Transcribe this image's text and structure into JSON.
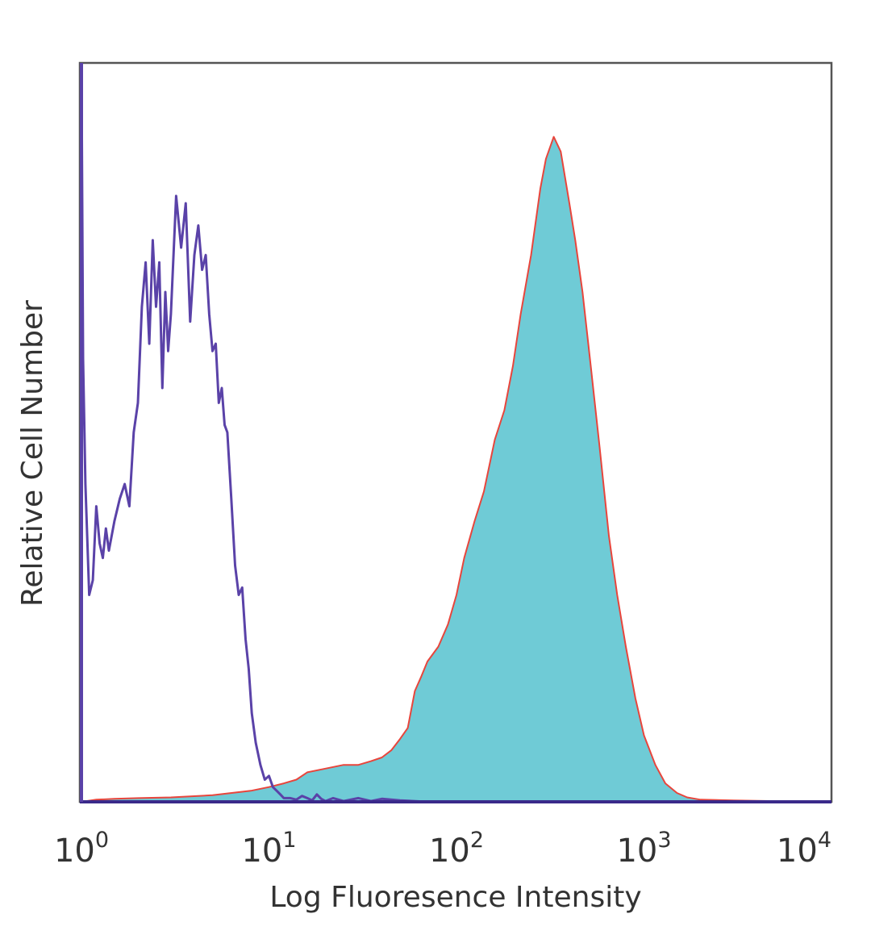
{
  "chart_data": {
    "type": "area",
    "title": "",
    "xlabel": "Log Fluoresence Intensity",
    "ylabel": "Relative Cell Number",
    "x_scale": "log10",
    "xlim": [
      1,
      10000
    ],
    "ylim": [
      0,
      100
    ],
    "grid": false,
    "legend": "none",
    "x_ticks": [
      {
        "base": "10",
        "exp": "0"
      },
      {
        "base": "10",
        "exp": "1"
      },
      {
        "base": "10",
        "exp": "2"
      },
      {
        "base": "10",
        "exp": "3"
      },
      {
        "base": "10",
        "exp": "4"
      }
    ],
    "series": [
      {
        "style": "filled",
        "color": "#6fcbd6",
        "outline_color": "#e8453c",
        "x": [
          1.0,
          1.2,
          1.5,
          2.0,
          3.0,
          5.0,
          8.0,
          10.0,
          12.0,
          14.0,
          16.0,
          20.0,
          25.0,
          30.0,
          35.0,
          40.0,
          45.0,
          50.0,
          55.0,
          60.0,
          65.0,
          70.0,
          80.0,
          90.0,
          100.0,
          110.0,
          125.0,
          140.0,
          160.0,
          180.0,
          200.0,
          220.0,
          250.0,
          280.0,
          300.0,
          330.0,
          360.0,
          400.0,
          430.0,
          470.0,
          520.0,
          580.0,
          650.0,
          720.0,
          800.0,
          900.0,
          1000.0,
          1150.0,
          1300.0,
          1500.0,
          1700.0,
          2000.0,
          3000.0,
          5000.0,
          10000.0
        ],
        "values": [
          0.0,
          0.3,
          0.4,
          0.5,
          0.6,
          0.9,
          1.5,
          2.0,
          2.5,
          3.0,
          4.0,
          4.5,
          5.0,
          5.0,
          5.5,
          6.0,
          7.0,
          8.5,
          10.0,
          15.0,
          17.0,
          19.0,
          21.0,
          24.0,
          28.0,
          33.0,
          38.0,
          42.0,
          49.0,
          53.0,
          59.0,
          66.0,
          74.0,
          83.0,
          87.0,
          90.0,
          88.0,
          81.0,
          76.0,
          69.0,
          59.0,
          48.0,
          36.0,
          28.0,
          21.0,
          14.0,
          9.0,
          5.0,
          2.5,
          1.2,
          0.6,
          0.3,
          0.2,
          0.1,
          0.0
        ]
      },
      {
        "style": "outline",
        "color": "#5a42a8",
        "x": [
          1.0,
          1.02,
          1.05,
          1.1,
          1.15,
          1.2,
          1.25,
          1.3,
          1.35,
          1.4,
          1.5,
          1.6,
          1.7,
          1.8,
          1.9,
          2.0,
          2.1,
          2.2,
          2.3,
          2.4,
          2.5,
          2.6,
          2.7,
          2.8,
          2.9,
          3.0,
          3.2,
          3.4,
          3.6,
          3.8,
          4.0,
          4.2,
          4.4,
          4.6,
          4.8,
          5.0,
          5.2,
          5.4,
          5.6,
          5.8,
          6.0,
          6.3,
          6.6,
          6.9,
          7.2,
          7.5,
          7.8,
          8.1,
          8.5,
          9.0,
          9.5,
          10.0,
          10.5,
          11.0,
          11.5,
          12.0,
          13.0,
          14.0,
          15.0,
          16.0,
          17.0,
          18.0,
          19.0,
          20.0,
          22.0,
          25.0,
          30.0,
          35.0,
          40.0,
          50.0,
          70.0,
          100.0,
          1000.0,
          10000.0
        ],
        "values": [
          100.0,
          60.0,
          43.0,
          28.0,
          30.0,
          40.0,
          35.0,
          33.0,
          37.0,
          34.0,
          38.0,
          41.0,
          43.0,
          40.0,
          50.0,
          54.0,
          67.0,
          73.0,
          62.0,
          76.0,
          67.0,
          73.0,
          56.0,
          69.0,
          61.0,
          66.0,
          82.0,
          75.0,
          81.0,
          65.0,
          74.0,
          78.0,
          72.0,
          74.0,
          66.0,
          61.0,
          62.0,
          54.0,
          56.0,
          51.0,
          50.0,
          41.0,
          32.0,
          28.0,
          29.0,
          22.0,
          18.0,
          12.0,
          8.0,
          5.0,
          3.0,
          3.5,
          2.0,
          1.5,
          1.0,
          0.5,
          0.5,
          0.3,
          0.8,
          0.5,
          0.2,
          1.0,
          0.4,
          0.1,
          0.5,
          0.1,
          0.5,
          0.1,
          0.4,
          0.2,
          0.0,
          0.0,
          0.0,
          0.0
        ]
      }
    ]
  }
}
